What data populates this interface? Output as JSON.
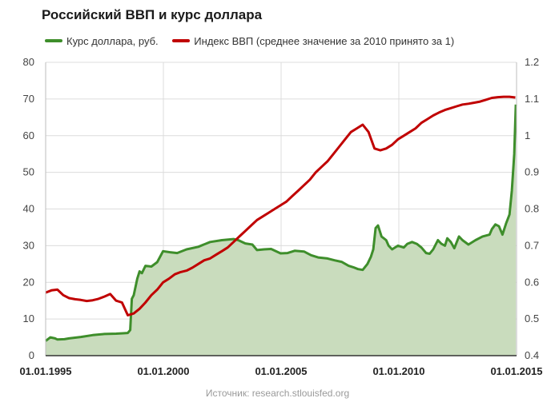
{
  "chart_data": {
    "type": "line",
    "title": "Российский ВВП и курс доллара",
    "source": "Источник: research.stlouisfed.org",
    "x_ticks": [
      "01.01.1995",
      "01.01.2000",
      "01.01.2005",
      "01.01.2010",
      "01.01.2015"
    ],
    "x_range": [
      1995.0,
      2015.05
    ],
    "y_left": {
      "ticks": [
        "0",
        "10",
        "20",
        "30",
        "40",
        "50",
        "60",
        "70",
        "80"
      ],
      "range": [
        0,
        80
      ]
    },
    "y_right": {
      "ticks": [
        "0.4",
        "0.5",
        "0.6",
        "0.7",
        "0.8",
        "0.9",
        "1",
        "1.1",
        "1.2"
      ],
      "range": [
        0.4,
        1.2
      ]
    },
    "grid": true,
    "legend_position": "top-left",
    "series": [
      {
        "name": "Курс доллара, руб.",
        "axis": "left",
        "color": "#3e8e2b",
        "fill": "#c9dcbd",
        "points": [
          [
            1995.0,
            4.0
          ],
          [
            1995.2,
            5.0
          ],
          [
            1995.4,
            4.7
          ],
          [
            1995.5,
            4.4
          ],
          [
            1995.8,
            4.5
          ],
          [
            1996.0,
            4.7
          ],
          [
            1996.5,
            5.1
          ],
          [
            1997.0,
            5.6
          ],
          [
            1997.5,
            5.9
          ],
          [
            1998.0,
            6.0
          ],
          [
            1998.3,
            6.1
          ],
          [
            1998.5,
            6.2
          ],
          [
            1998.6,
            7.0
          ],
          [
            1998.67,
            15.5
          ],
          [
            1998.75,
            16.5
          ],
          [
            1998.9,
            21.0
          ],
          [
            1999.0,
            23.0
          ],
          [
            1999.1,
            22.5
          ],
          [
            1999.25,
            24.5
          ],
          [
            1999.5,
            24.3
          ],
          [
            1999.75,
            25.5
          ],
          [
            2000.0,
            28.5
          ],
          [
            2000.3,
            28.2
          ],
          [
            2000.6,
            28.0
          ],
          [
            2001.0,
            29.0
          ],
          [
            2001.5,
            29.7
          ],
          [
            2002.0,
            31.0
          ],
          [
            2002.5,
            31.5
          ],
          [
            2003.0,
            31.8
          ],
          [
            2003.2,
            31.5
          ],
          [
            2003.5,
            30.6
          ],
          [
            2003.8,
            30.3
          ],
          [
            2004.0,
            28.8
          ],
          [
            2004.3,
            29.0
          ],
          [
            2004.6,
            29.1
          ],
          [
            2005.0,
            27.9
          ],
          [
            2005.3,
            28.0
          ],
          [
            2005.6,
            28.6
          ],
          [
            2006.0,
            28.4
          ],
          [
            2006.3,
            27.4
          ],
          [
            2006.6,
            26.8
          ],
          [
            2007.0,
            26.5
          ],
          [
            2007.3,
            26.0
          ],
          [
            2007.6,
            25.6
          ],
          [
            2007.9,
            24.5
          ],
          [
            2008.1,
            24.1
          ],
          [
            2008.3,
            23.6
          ],
          [
            2008.5,
            23.4
          ],
          [
            2008.7,
            25.0
          ],
          [
            2008.85,
            27.0
          ],
          [
            2008.95,
            29.0
          ],
          [
            2009.05,
            34.8
          ],
          [
            2009.15,
            35.5
          ],
          [
            2009.3,
            32.5
          ],
          [
            2009.5,
            31.5
          ],
          [
            2009.6,
            30.0
          ],
          [
            2009.75,
            29.0
          ],
          [
            2010.0,
            30.0
          ],
          [
            2010.25,
            29.5
          ],
          [
            2010.4,
            30.5
          ],
          [
            2010.6,
            31.0
          ],
          [
            2010.8,
            30.5
          ],
          [
            2011.0,
            29.5
          ],
          [
            2011.2,
            28.0
          ],
          [
            2011.35,
            27.8
          ],
          [
            2011.5,
            29.0
          ],
          [
            2011.7,
            31.5
          ],
          [
            2011.85,
            30.5
          ],
          [
            2012.0,
            30.0
          ],
          [
            2012.1,
            32.0
          ],
          [
            2012.25,
            31.0
          ],
          [
            2012.4,
            29.3
          ],
          [
            2012.6,
            32.5
          ],
          [
            2012.75,
            31.5
          ],
          [
            2013.0,
            30.3
          ],
          [
            2013.3,
            31.5
          ],
          [
            2013.6,
            32.5
          ],
          [
            2013.9,
            33.0
          ],
          [
            2014.0,
            34.5
          ],
          [
            2014.15,
            35.8
          ],
          [
            2014.3,
            35.3
          ],
          [
            2014.45,
            33.0
          ],
          [
            2014.6,
            36.0
          ],
          [
            2014.75,
            38.5
          ],
          [
            2014.85,
            45.0
          ],
          [
            2014.95,
            55.0
          ],
          [
            2015.02,
            68.5
          ]
        ]
      },
      {
        "name": "Индекс ВВП (среднее значение за 2010 принято за 1)",
        "axis": "right",
        "color": "#c00000",
        "points": [
          [
            1995.0,
            0.572
          ],
          [
            1995.25,
            0.578
          ],
          [
            1995.5,
            0.58
          ],
          [
            1995.75,
            0.565
          ],
          [
            1996.0,
            0.557
          ],
          [
            1996.25,
            0.554
          ],
          [
            1996.5,
            0.552
          ],
          [
            1996.75,
            0.549
          ],
          [
            1997.0,
            0.551
          ],
          [
            1997.25,
            0.555
          ],
          [
            1997.5,
            0.561
          ],
          [
            1997.75,
            0.568
          ],
          [
            1998.0,
            0.55
          ],
          [
            1998.25,
            0.545
          ],
          [
            1998.5,
            0.51
          ],
          [
            1998.75,
            0.515
          ],
          [
            1999.0,
            0.528
          ],
          [
            1999.25,
            0.545
          ],
          [
            1999.5,
            0.565
          ],
          [
            1999.75,
            0.58
          ],
          [
            2000.0,
            0.6
          ],
          [
            2000.25,
            0.61
          ],
          [
            2000.5,
            0.622
          ],
          [
            2000.75,
            0.628
          ],
          [
            2001.0,
            0.632
          ],
          [
            2001.25,
            0.64
          ],
          [
            2001.5,
            0.65
          ],
          [
            2001.75,
            0.66
          ],
          [
            2002.0,
            0.665
          ],
          [
            2002.25,
            0.675
          ],
          [
            2002.5,
            0.685
          ],
          [
            2002.75,
            0.695
          ],
          [
            2003.0,
            0.71
          ],
          [
            2003.25,
            0.725
          ],
          [
            2003.5,
            0.74
          ],
          [
            2003.75,
            0.755
          ],
          [
            2004.0,
            0.77
          ],
          [
            2004.25,
            0.78
          ],
          [
            2004.5,
            0.79
          ],
          [
            2004.75,
            0.8
          ],
          [
            2005.0,
            0.81
          ],
          [
            2005.25,
            0.82
          ],
          [
            2005.5,
            0.835
          ],
          [
            2005.75,
            0.85
          ],
          [
            2006.0,
            0.865
          ],
          [
            2006.25,
            0.88
          ],
          [
            2006.5,
            0.9
          ],
          [
            2006.75,
            0.915
          ],
          [
            2007.0,
            0.93
          ],
          [
            2007.25,
            0.95
          ],
          [
            2007.5,
            0.97
          ],
          [
            2007.75,
            0.99
          ],
          [
            2008.0,
            1.01
          ],
          [
            2008.25,
            1.02
          ],
          [
            2008.5,
            1.03
          ],
          [
            2008.75,
            1.01
          ],
          [
            2009.0,
            0.965
          ],
          [
            2009.25,
            0.96
          ],
          [
            2009.5,
            0.965
          ],
          [
            2009.75,
            0.975
          ],
          [
            2010.0,
            0.99
          ],
          [
            2010.25,
            1.0
          ],
          [
            2010.5,
            1.01
          ],
          [
            2010.75,
            1.02
          ],
          [
            2011.0,
            1.035
          ],
          [
            2011.25,
            1.045
          ],
          [
            2011.5,
            1.055
          ],
          [
            2011.75,
            1.063
          ],
          [
            2012.0,
            1.07
          ],
          [
            2012.25,
            1.075
          ],
          [
            2012.5,
            1.08
          ],
          [
            2012.75,
            1.085
          ],
          [
            2013.0,
            1.087
          ],
          [
            2013.25,
            1.09
          ],
          [
            2013.5,
            1.093
          ],
          [
            2013.75,
            1.098
          ],
          [
            2014.0,
            1.103
          ],
          [
            2014.25,
            1.105
          ],
          [
            2014.5,
            1.106
          ],
          [
            2014.75,
            1.106
          ],
          [
            2015.0,
            1.104
          ]
        ]
      }
    ]
  }
}
